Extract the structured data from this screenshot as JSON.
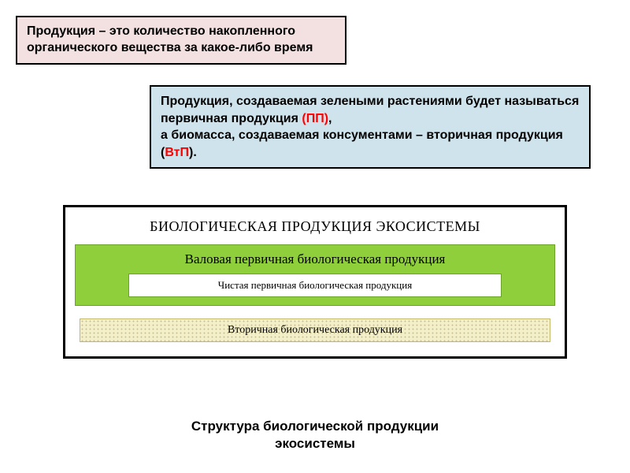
{
  "box1": {
    "text": "Продукция – это количество накопленного органического вещества за какое-либо время",
    "bg": "#f3e0e0",
    "border": "#000000",
    "text_color": "#000000",
    "fontsize": 16
  },
  "box2": {
    "line1_a": "Продукция, создаваемая зелеными растениями будет называться первичная продукция ",
    "line1_b": "(ПП)",
    "line1_c": ",",
    "line2_a": "а биомасса, создаваемая консументами – вторичная продукция ",
    "line2_b": "(",
    "line2_c": "ВтП",
    "line2_d": ").",
    "bg": "#cfe3ec",
    "border": "#000000",
    "text_color": "#000000",
    "accent_color": "#ff0000",
    "fontsize": 16
  },
  "diagram": {
    "title": "БИОЛОГИЧЕСКАЯ ПРОДУКЦИЯ ЭКОСИСТЕМЫ",
    "outer_border": "#000000",
    "outer_bg": "#ffffff",
    "gross": {
      "label": "Валовая первичная биологическая продукция",
      "bg": "#8fcf3c",
      "border": "#6aa327"
    },
    "net": {
      "label": "Чистая первичная биологическая продукция",
      "bg": "#ffffff",
      "border": "#6aa327"
    },
    "secondary": {
      "label": "Вторичная биологическая продукция",
      "bg": "#f3efc8",
      "border": "#c2b96e"
    }
  },
  "caption": {
    "line1": "Структура биологической продукции",
    "line2": "экосистемы",
    "fontsize": 17,
    "color": "#000000"
  }
}
